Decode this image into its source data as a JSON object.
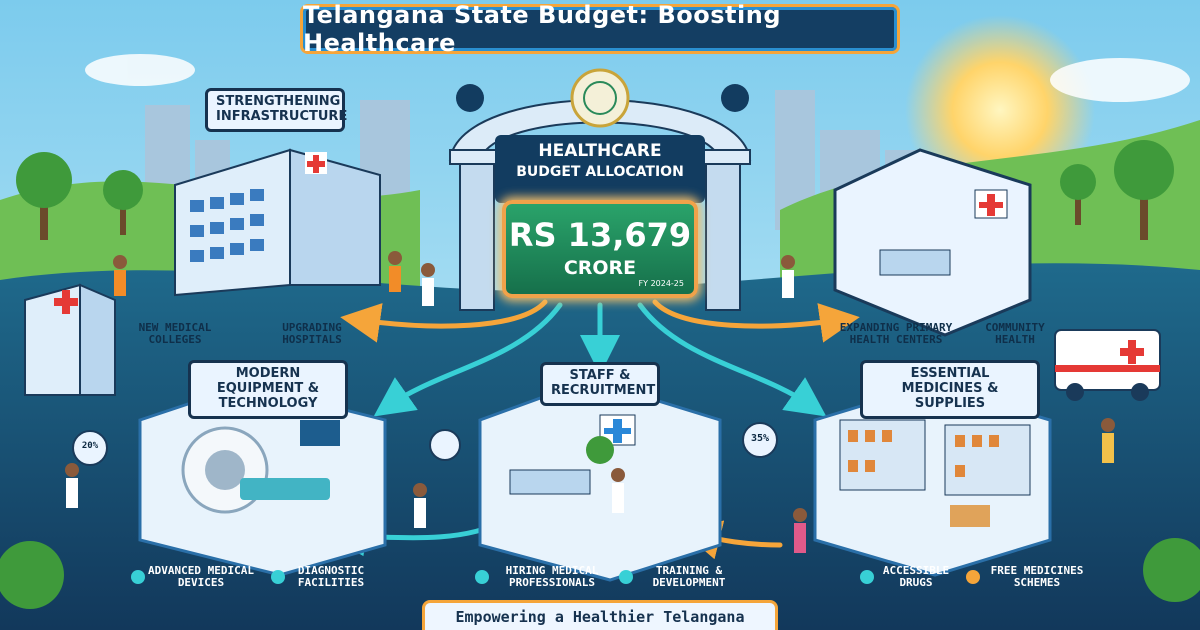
{
  "title": "Telangana State Budget: Boosting Healthcare",
  "center": {
    "heading_line1": "Healthcare",
    "heading_line2": "Budget Allocation",
    "amount": "RS 13,679",
    "unit": "CRORE",
    "fiscal_year": "FY 2024-25"
  },
  "sections": {
    "infrastructure": {
      "title": "Strengthening Infrastructure",
      "items": [
        "New Medical Colleges",
        "Upgrading Hospitals"
      ]
    },
    "primary": {
      "items": [
        "Expanding Primary Health Centers",
        "Community Health"
      ]
    },
    "equipment": {
      "title": "Modern Equipment & Technology",
      "items": [
        "Advanced Medical Devices",
        "Diagnostic Facilities"
      ],
      "stat": "20%"
    },
    "staff": {
      "title": "Staff & Recruitment",
      "items": [
        "Hiring Medical Professionals",
        "Training & Development"
      ]
    },
    "medicines": {
      "title": "Essential Medicines & Supplies",
      "items": [
        "Accessible Drugs",
        "Free Medicines Schemes"
      ],
      "stat": "35%"
    }
  },
  "footer": "Empowering a Healthier Telangana",
  "colors": {
    "sky": "#8fd3f0",
    "hills": "#6fbf55",
    "navy": "#143e63",
    "accent_orange": "#f5a53a",
    "accent_teal": "#2ec4c6",
    "budget_green": "#1f8a5a"
  }
}
